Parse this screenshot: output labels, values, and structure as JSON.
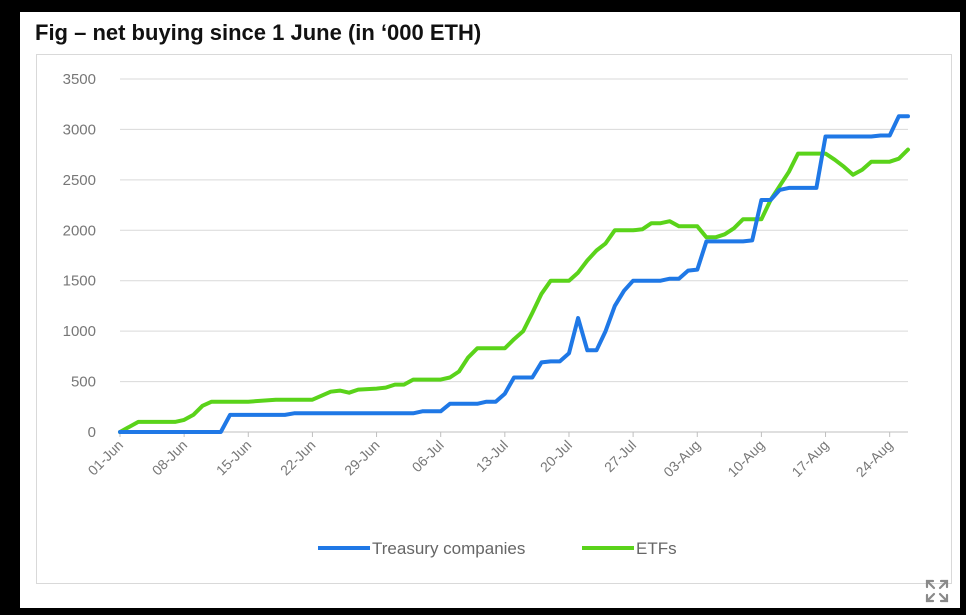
{
  "title": "Fig – net buying since 1 June (in ‘000 ETH)",
  "expand_icon": "expand-arrows-icon",
  "colors": {
    "treasury": "#1f78e6",
    "etfs": "#5ad31a",
    "grid": "#d9d9d9",
    "tick": "#777777"
  },
  "chart_data": {
    "type": "line",
    "title": "Fig – net buying since 1 June (in ‘000 ETH)",
    "xlabel": "",
    "ylabel": "",
    "ylim": [
      0,
      3500
    ],
    "yticks": [
      0,
      500,
      1000,
      1500,
      2000,
      2500,
      3000,
      3500
    ],
    "xticks": [
      "01-Jun",
      "08-Jun",
      "15-Jun",
      "22-Jun",
      "29-Jun",
      "06-Jul",
      "13-Jul",
      "20-Jul",
      "27-Jul",
      "03-Aug",
      "10-Aug",
      "17-Aug",
      "24-Aug"
    ],
    "grid": "horizontal",
    "legend_position": "bottom",
    "x_start_date": "2025-06-01",
    "x_end_date": "2025-08-26",
    "series": [
      {
        "name": "Treasury companies",
        "points": [
          [
            "2025-06-01",
            0
          ],
          [
            "2025-06-12",
            0
          ],
          [
            "2025-06-13",
            170
          ],
          [
            "2025-06-19",
            170
          ],
          [
            "2025-06-20",
            185
          ],
          [
            "2025-06-26",
            185
          ],
          [
            "2025-07-03",
            185
          ],
          [
            "2025-07-04",
            205
          ],
          [
            "2025-07-06",
            205
          ],
          [
            "2025-07-07",
            280
          ],
          [
            "2025-07-10",
            280
          ],
          [
            "2025-07-11",
            300
          ],
          [
            "2025-07-12",
            300
          ],
          [
            "2025-07-13",
            380
          ],
          [
            "2025-07-14",
            540
          ],
          [
            "2025-07-16",
            540
          ],
          [
            "2025-07-17",
            690
          ],
          [
            "2025-07-18",
            700
          ],
          [
            "2025-07-19",
            700
          ],
          [
            "2025-07-20",
            780
          ],
          [
            "2025-07-21",
            1130
          ],
          [
            "2025-07-22",
            810
          ],
          [
            "2025-07-23",
            810
          ],
          [
            "2025-07-24",
            1000
          ],
          [
            "2025-07-25",
            1250
          ],
          [
            "2025-07-26",
            1400
          ],
          [
            "2025-07-27",
            1500
          ],
          [
            "2025-07-29",
            1500
          ],
          [
            "2025-07-30",
            1500
          ],
          [
            "2025-07-31",
            1520
          ],
          [
            "2025-08-01",
            1520
          ],
          [
            "2025-08-02",
            1600
          ],
          [
            "2025-08-03",
            1610
          ],
          [
            "2025-08-04",
            1890
          ],
          [
            "2025-08-08",
            1890
          ],
          [
            "2025-08-09",
            1900
          ],
          [
            "2025-08-10",
            2300
          ],
          [
            "2025-08-11",
            2300
          ],
          [
            "2025-08-12",
            2400
          ],
          [
            "2025-08-13",
            2420
          ],
          [
            "2025-08-16",
            2420
          ],
          [
            "2025-08-17",
            2930
          ],
          [
            "2025-08-22",
            2930
          ],
          [
            "2025-08-23",
            2940
          ],
          [
            "2025-08-24",
            2940
          ],
          [
            "2025-08-25",
            3130
          ],
          [
            "2025-08-26",
            3130
          ]
        ]
      },
      {
        "name": "ETFs",
        "points": [
          [
            "2025-06-01",
            0
          ],
          [
            "2025-06-03",
            100
          ],
          [
            "2025-06-07",
            100
          ],
          [
            "2025-06-08",
            120
          ],
          [
            "2025-06-09",
            170
          ],
          [
            "2025-06-10",
            260
          ],
          [
            "2025-06-11",
            300
          ],
          [
            "2025-06-15",
            300
          ],
          [
            "2025-06-18",
            320
          ],
          [
            "2025-06-22",
            320
          ],
          [
            "2025-06-23",
            360
          ],
          [
            "2025-06-24",
            400
          ],
          [
            "2025-06-25",
            410
          ],
          [
            "2025-06-26",
            390
          ],
          [
            "2025-06-27",
            420
          ],
          [
            "2025-06-29",
            430
          ],
          [
            "2025-06-30",
            440
          ],
          [
            "2025-07-01",
            470
          ],
          [
            "2025-07-02",
            470
          ],
          [
            "2025-07-03",
            520
          ],
          [
            "2025-07-06",
            520
          ],
          [
            "2025-07-07",
            540
          ],
          [
            "2025-07-08",
            600
          ],
          [
            "2025-07-09",
            740
          ],
          [
            "2025-07-10",
            830
          ],
          [
            "2025-07-12",
            830
          ],
          [
            "2025-07-13",
            830
          ],
          [
            "2025-07-14",
            920
          ],
          [
            "2025-07-15",
            1000
          ],
          [
            "2025-07-16",
            1180
          ],
          [
            "2025-07-17",
            1370
          ],
          [
            "2025-07-18",
            1500
          ],
          [
            "2025-07-19",
            1500
          ],
          [
            "2025-07-20",
            1500
          ],
          [
            "2025-07-21",
            1580
          ],
          [
            "2025-07-22",
            1700
          ],
          [
            "2025-07-23",
            1800
          ],
          [
            "2025-07-24",
            1870
          ],
          [
            "2025-07-25",
            2000
          ],
          [
            "2025-07-27",
            2000
          ],
          [
            "2025-07-28",
            2010
          ],
          [
            "2025-07-29",
            2070
          ],
          [
            "2025-07-30",
            2070
          ],
          [
            "2025-07-31",
            2090
          ],
          [
            "2025-08-01",
            2040
          ],
          [
            "2025-08-02",
            2040
          ],
          [
            "2025-08-03",
            2040
          ],
          [
            "2025-08-04",
            1930
          ],
          [
            "2025-08-05",
            1930
          ],
          [
            "2025-08-06",
            1960
          ],
          [
            "2025-08-07",
            2020
          ],
          [
            "2025-08-08",
            2110
          ],
          [
            "2025-08-09",
            2110
          ],
          [
            "2025-08-10",
            2110
          ],
          [
            "2025-08-11",
            2300
          ],
          [
            "2025-08-12",
            2440
          ],
          [
            "2025-08-13",
            2580
          ],
          [
            "2025-08-14",
            2760
          ],
          [
            "2025-08-15",
            2760
          ],
          [
            "2025-08-16",
            2760
          ],
          [
            "2025-08-17",
            2760
          ],
          [
            "2025-08-18",
            2700
          ],
          [
            "2025-08-19",
            2630
          ],
          [
            "2025-08-20",
            2550
          ],
          [
            "2025-08-21",
            2600
          ],
          [
            "2025-08-22",
            2680
          ],
          [
            "2025-08-23",
            2680
          ],
          [
            "2025-08-24",
            2680
          ],
          [
            "2025-08-25",
            2710
          ],
          [
            "2025-08-26",
            2800
          ]
        ]
      }
    ]
  }
}
